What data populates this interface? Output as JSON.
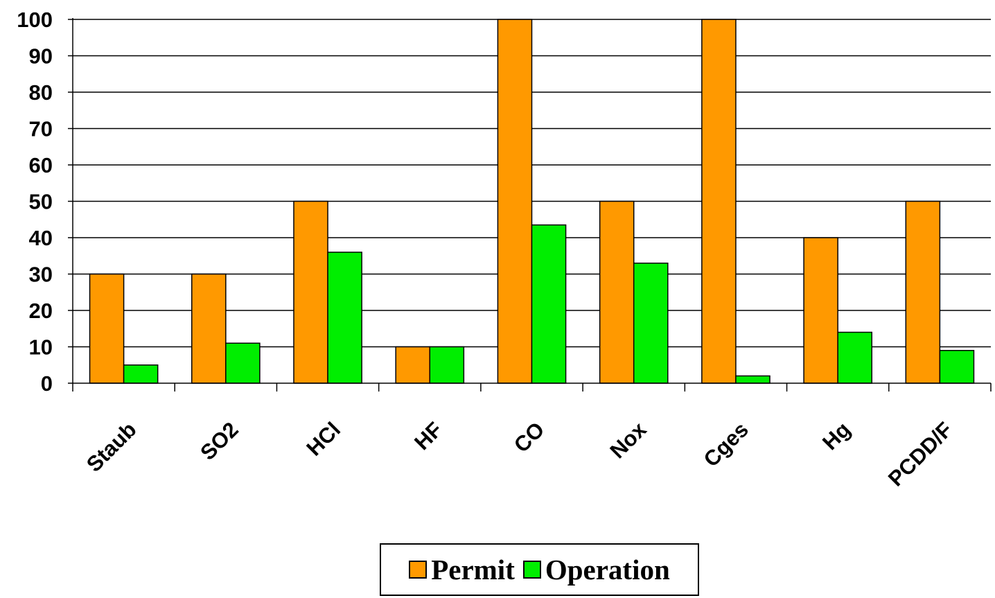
{
  "chart_data": {
    "type": "bar",
    "categories": [
      "Staub",
      "SO2",
      "HCl",
      "HF",
      "CO",
      "Nox",
      "Cges",
      "Hg",
      "PCDD/F"
    ],
    "series": [
      {
        "name": "Permit",
        "color": "#FF9900",
        "values": [
          30,
          30,
          50,
          10,
          100,
          50,
          100,
          40,
          50
        ]
      },
      {
        "name": "Operation",
        "color": "#00EE00",
        "values": [
          5,
          11,
          36,
          10,
          43.5,
          33,
          2,
          14,
          9
        ]
      }
    ],
    "title": "",
    "xlabel": "",
    "ylabel": "",
    "ylim": [
      0,
      100
    ],
    "yticks": [
      0,
      10,
      20,
      30,
      40,
      50,
      60,
      70,
      80,
      90,
      100
    ],
    "grid": true,
    "legend_position": "bottom"
  }
}
